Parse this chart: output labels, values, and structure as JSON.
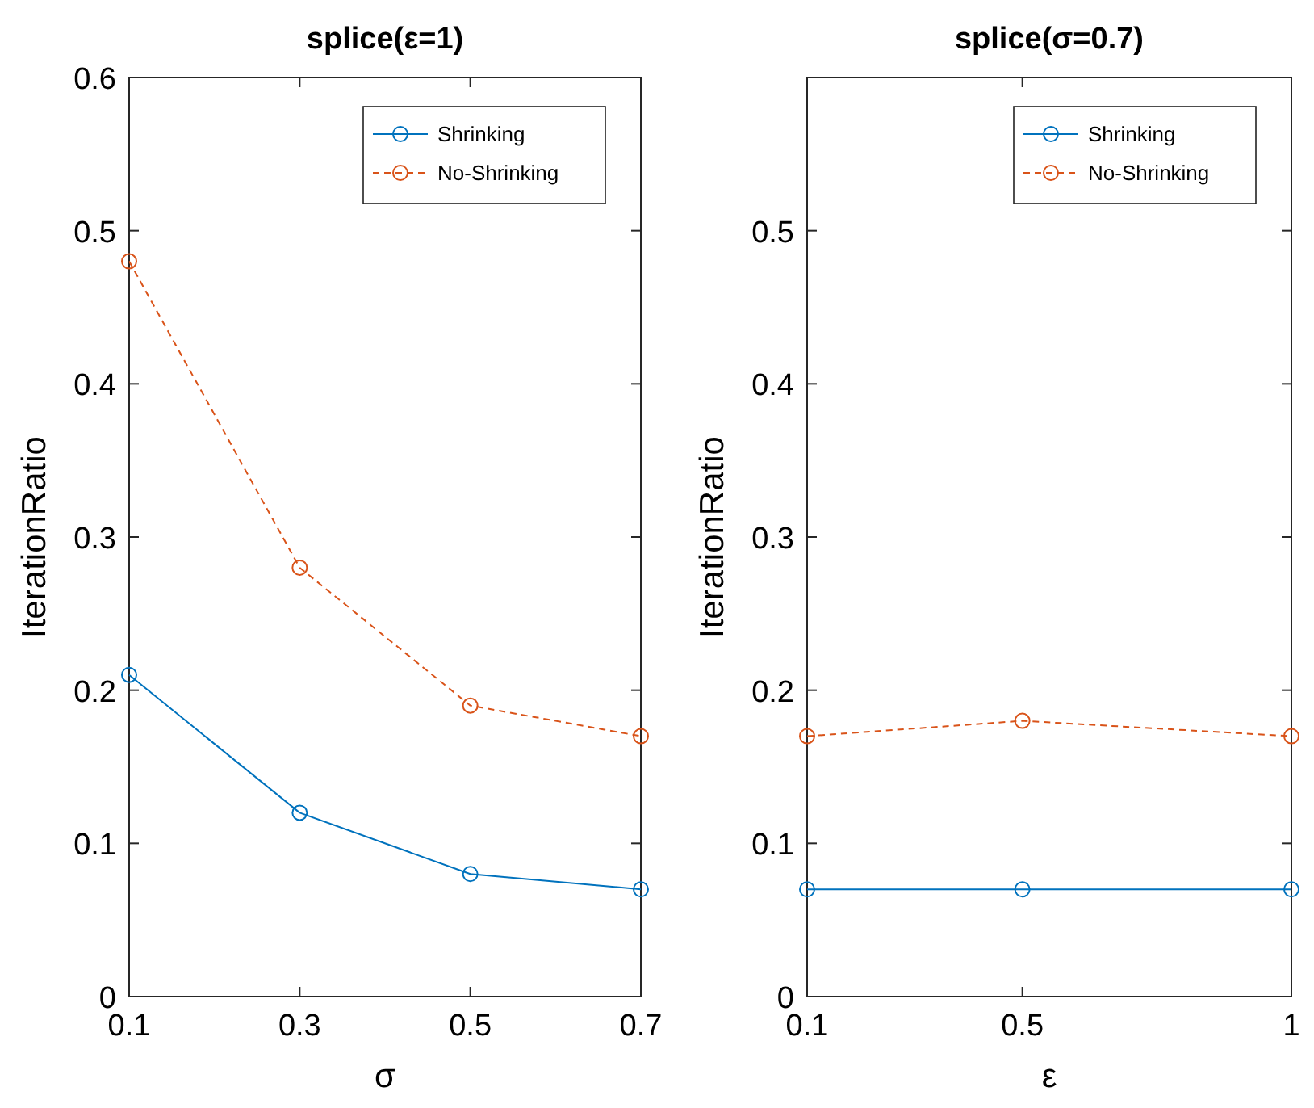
{
  "chart_data": [
    {
      "type": "line",
      "title": "splice(ε=1)",
      "xlabel": "σ",
      "ylabel": "IterationRatio",
      "x": [
        0.1,
        0.3,
        0.5,
        0.7
      ],
      "xlim": [
        0.1,
        0.7
      ],
      "xticks": [
        0.1,
        0.3,
        0.5,
        0.7
      ],
      "ylim": [
        0,
        0.6
      ],
      "yticks": [
        0,
        0.1,
        0.2,
        0.3,
        0.4,
        0.5,
        0.6
      ],
      "grid": false,
      "legend": "top right",
      "marker": "circle",
      "series": [
        {
          "name": "Shrinking",
          "color": "#0072bd",
          "line_style": "solid",
          "values": [
            0.21,
            0.12,
            0.08,
            0.07
          ]
        },
        {
          "name": "No-Shrinking",
          "color": "#d95319",
          "line_style": "dashed",
          "values": [
            0.48,
            0.28,
            0.19,
            0.17
          ]
        }
      ]
    },
    {
      "type": "line",
      "title": "splice(σ=0.7)",
      "xlabel": "ε",
      "ylabel": "IterationRatio",
      "x": [
        0.1,
        0.5,
        1
      ],
      "xlim": [
        0.1,
        1
      ],
      "xticks": [
        0.1,
        0.5,
        1
      ],
      "ylim": [
        0,
        0.6
      ],
      "yticks": [
        0,
        0.1,
        0.2,
        0.3,
        0.4,
        0.5
      ],
      "grid": false,
      "legend": "top right",
      "marker": "circle",
      "series": [
        {
          "name": "Shrinking",
          "color": "#0072bd",
          "line_style": "solid",
          "values": [
            0.07,
            0.07,
            0.07
          ]
        },
        {
          "name": "No-Shrinking",
          "color": "#d95319",
          "line_style": "dashed",
          "values": [
            0.17,
            0.18,
            0.17
          ]
        }
      ]
    }
  ]
}
